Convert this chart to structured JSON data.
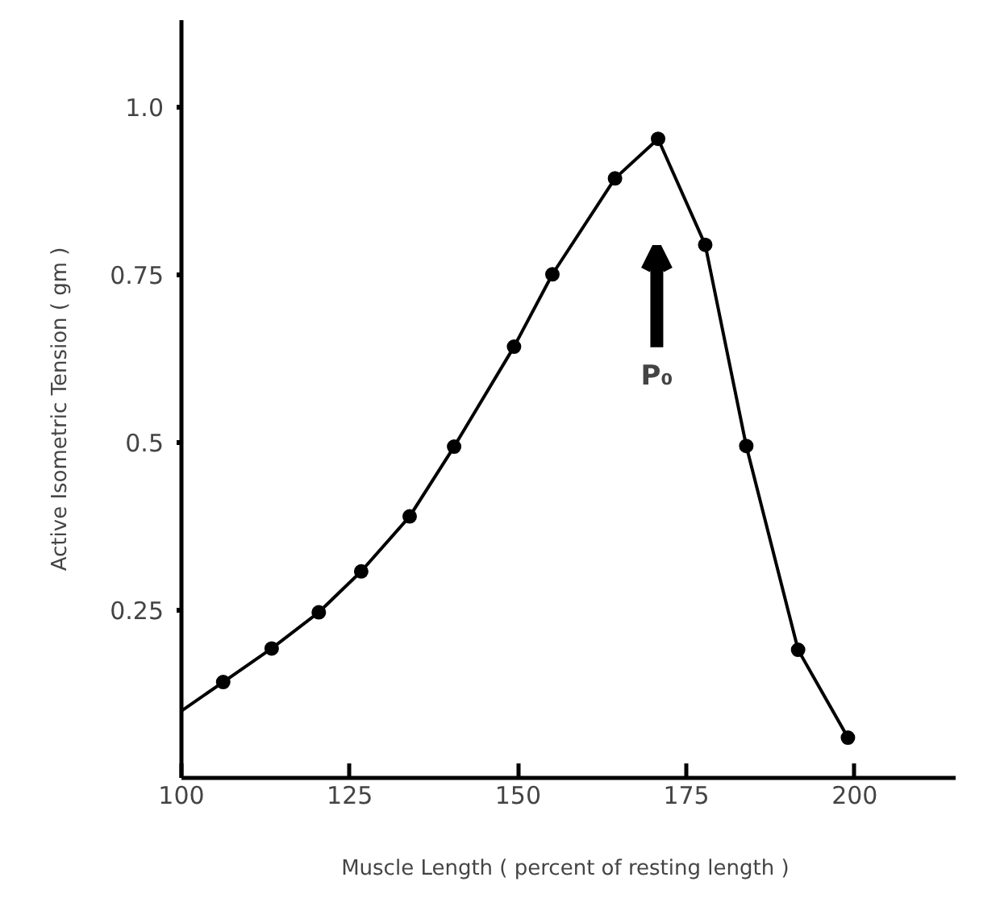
{
  "chart_data": {
    "type": "line",
    "xlabel": "Muscle Length  ( percent of resting length )",
    "ylabel": "Active  Isometric  Tension  ( gm )",
    "xlim": [
      100,
      215
    ],
    "ylim": [
      0,
      1.13
    ],
    "xticks": [
      100,
      125,
      150,
      175,
      200
    ],
    "yticks": [
      0.25,
      0.5,
      0.75,
      {
        "value": 1,
        "label": "1.0"
      }
    ],
    "grid": false,
    "series": [
      {
        "color": "#000000",
        "marker": "none",
        "x": [
          100,
          106.2,
          113.4,
          120.4,
          126.7,
          133.9,
          140.5,
          149.4,
          155.1,
          164.4,
          170.8,
          177.8,
          183.9,
          191.6,
          199.0
        ],
        "values": [
          0.1,
          0.143,
          0.193,
          0.247,
          0.308,
          0.39,
          0.494,
          0.643,
          0.751,
          0.894,
          0.953,
          0.795,
          0.495,
          0.191,
          0.06
        ]
      },
      {
        "type": "scatter",
        "color": "#000000",
        "marker": "circle",
        "x": [
          106.2,
          113.4,
          120.4,
          126.7,
          133.9,
          140.5,
          149.4,
          155.1,
          164.4,
          170.8,
          177.8,
          183.9,
          191.6,
          199.0
        ],
        "values": [
          0.143,
          0.193,
          0.247,
          0.308,
          0.39,
          0.494,
          0.643,
          0.751,
          0.894,
          0.953,
          0.795,
          0.495,
          0.191,
          0.06
        ]
      }
    ],
    "annotations": [
      "P₀"
    ]
  }
}
